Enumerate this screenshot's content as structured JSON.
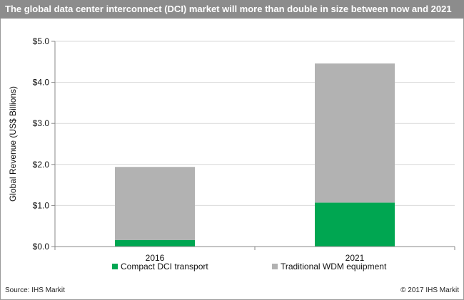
{
  "chart_data": {
    "type": "bar",
    "stacked": true,
    "title": "The global data center interconnect (DCI) market will more than double in size between now and 2021",
    "categories": [
      "2016",
      "2021"
    ],
    "series": [
      {
        "name": "Compact DCI transport",
        "values": [
          0.16,
          1.07
        ],
        "color": "#00a651"
      },
      {
        "name": "Traditional WDM equipment",
        "values": [
          1.78,
          3.39
        ],
        "color": "#b2b2b2"
      }
    ],
    "ylabel": "Global Revenue (US$ Billions)",
    "xlabel": "",
    "ylim": [
      0,
      5
    ],
    "yticks": [
      "$0.0",
      "$1.0",
      "$2.0",
      "$3.0",
      "$4.0",
      "$5.0"
    ],
    "ytick_values": [
      0,
      1,
      2,
      3,
      4,
      5
    ],
    "grid": true,
    "legend_position": "bottom"
  },
  "footer": {
    "source": "Source: IHS Markit",
    "copyright": "© 2017 IHS Markit"
  }
}
